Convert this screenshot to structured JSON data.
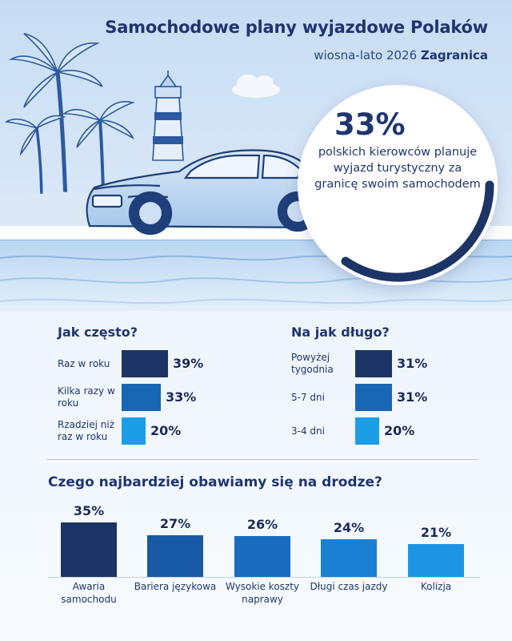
{
  "header": {
    "title": "Samochodowe plany wyjazdowe Polaków",
    "subtitle_prefix": "wiosna-lato 2026",
    "subtitle_emphasis": "Zagranica"
  },
  "highlight": {
    "value": "33%",
    "description": "polskich kierowców planuje wyjazd turystyczny za granicę swoim samochodem"
  },
  "colors": {
    "navy": "#1d3466",
    "mid_blue": "#1867b4",
    "light_blue": "#1c9ee6",
    "bar_blue_1": "#185aa6",
    "bar_blue_2": "#1a6cc0",
    "bar_blue_3": "#1a80d4",
    "bar_blue_4": "#1d95e2",
    "sky": "#cfe2f6",
    "sea": "#c5def4"
  },
  "chart_data": [
    {
      "type": "bar",
      "orientation": "horizontal",
      "title": "Jak często?",
      "categories": [
        "Raz w roku",
        "Kilka razy w roku",
        "Rzadziej niż raz w roku"
      ],
      "values": [
        39,
        33,
        20
      ],
      "value_labels": [
        "39%",
        "33%",
        "20%"
      ],
      "unit": "%"
    },
    {
      "type": "bar",
      "orientation": "horizontal",
      "title": "Na jak długo?",
      "categories": [
        "Powyżej tygodnia",
        "5-7 dni",
        "3-4 dni"
      ],
      "values": [
        31,
        31,
        20
      ],
      "value_labels": [
        "31%",
        "31%",
        "20%"
      ],
      "unit": "%"
    },
    {
      "type": "bar",
      "orientation": "vertical",
      "title": "Czego najbardziej obawiamy się na drodze?",
      "categories": [
        "Awaria samochodu",
        "Bariera językowa",
        "Wysokie koszty naprawy",
        "Długi czas jazdy",
        "Kolizja"
      ],
      "values": [
        35,
        27,
        26,
        24,
        21
      ],
      "value_labels": [
        "35%",
        "27%",
        "26%",
        "24%",
        "21%"
      ],
      "unit": "%"
    }
  ]
}
